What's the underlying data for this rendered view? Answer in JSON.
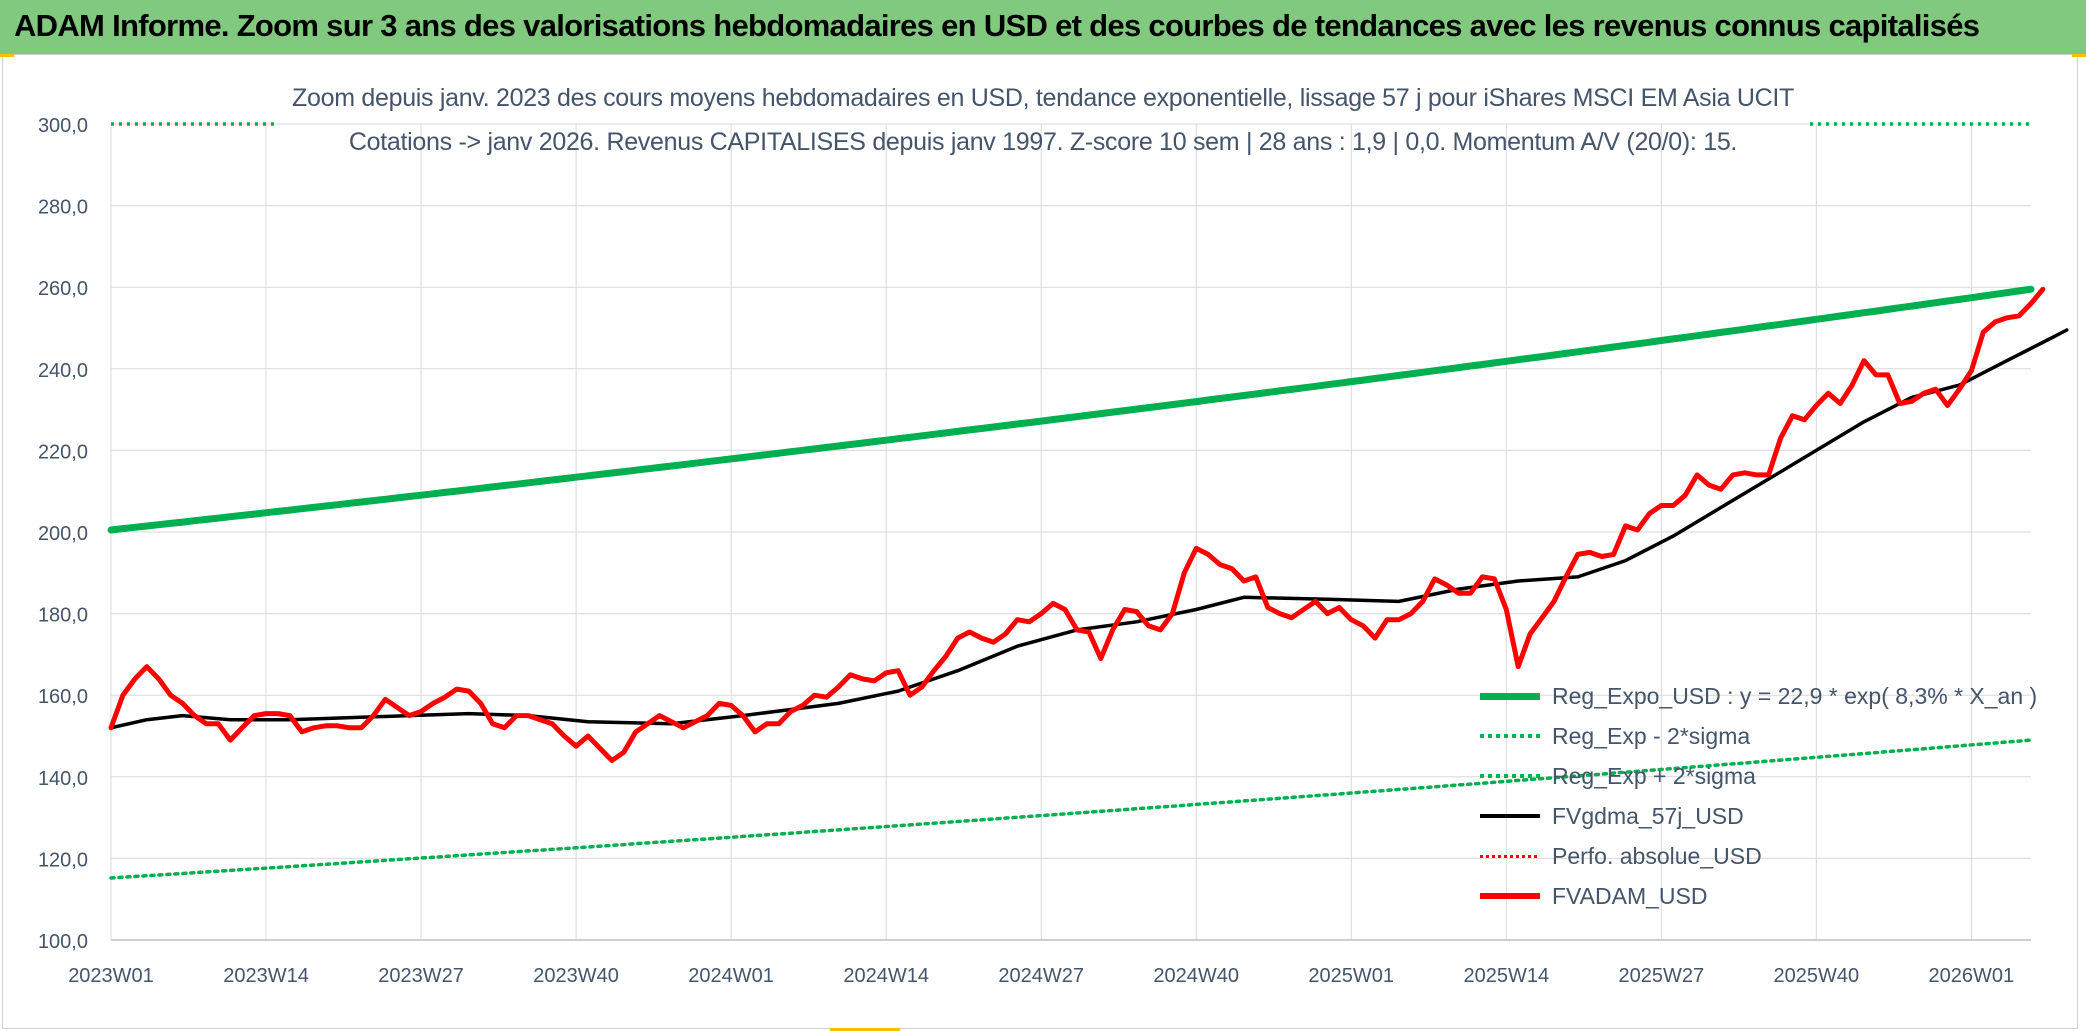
{
  "header": {
    "title": "ADAM Informe. Zoom sur 3 ans des valorisations hebdomadaires en USD et des courbes de tendances avec les revenus connus capitalisés"
  },
  "chart_data": {
    "type": "line",
    "title_line1": "Zoom depuis janv. 2023 des cours moyens hebdomadaires en USD, tendance exponentielle, lissage 57 j pour iShares MSCI EM Asia UCIT",
    "title_line2": "Cotations -> janv 2026. Revenus CAPITALISES depuis janv 1997. Z-score 10 sem | 28 ans : 1,9 | 0,0. Momentum A/V (20/0): 15.",
    "xlabel": "",
    "ylabel": "",
    "ylim": [
      100,
      300
    ],
    "yticks": [
      "100,0",
      "120,0",
      "140,0",
      "160,0",
      "180,0",
      "200,0",
      "220,0",
      "240,0",
      "260,0",
      "280,0",
      "300,0"
    ],
    "ytick_values": [
      100,
      120,
      140,
      160,
      180,
      200,
      220,
      240,
      260,
      280,
      300
    ],
    "x_tick_labels": [
      "2023W01",
      "2023W14",
      "2023W27",
      "2023W40",
      "2024W01",
      "2024W14",
      "2024W27",
      "2024W40",
      "2025W01",
      "2025W14",
      "2025W27",
      "2025W40",
      "2026W01"
    ],
    "x_tick_week_index": [
      0,
      13,
      26,
      39,
      52,
      65,
      78,
      91,
      104,
      117,
      130,
      143,
      156
    ],
    "n_weeks": 162,
    "grid": true,
    "legend_position": "bottom-right",
    "series": [
      {
        "name": "Reg_Expo_USD : y = 22,9 * exp( 8,3% *  X_an )",
        "color": "#00b050",
        "style": "solid-thick",
        "start": 200.5,
        "end": 259.5
      },
      {
        "name": "Reg_Exp - 2*sigma",
        "color": "#00b050",
        "style": "dotted",
        "start": 115.2,
        "end": 149.0
      },
      {
        "name": "Reg_Exp + 2*sigma",
        "color": "#00b050",
        "style": "dotted",
        "start": 300.0,
        "end": 300.0
      },
      {
        "name": "FVgdma_57j_USD",
        "color": "#000000",
        "style": "solid",
        "points": [
          [
            0,
            152
          ],
          [
            3,
            154
          ],
          [
            6,
            155
          ],
          [
            10,
            154
          ],
          [
            15,
            154
          ],
          [
            25,
            155
          ],
          [
            30,
            155.5
          ],
          [
            35,
            155
          ],
          [
            40,
            153.5
          ],
          [
            47,
            153
          ],
          [
            53,
            155
          ],
          [
            57,
            156.5
          ],
          [
            61,
            158
          ],
          [
            66,
            161
          ],
          [
            71,
            166
          ],
          [
            76,
            172
          ],
          [
            81,
            176
          ],
          [
            86,
            178
          ],
          [
            91,
            181
          ],
          [
            95,
            184
          ],
          [
            102,
            183.5
          ],
          [
            108,
            183
          ],
          [
            113,
            186
          ],
          [
            118,
            188
          ],
          [
            123,
            189
          ],
          [
            127,
            193
          ],
          [
            131,
            199
          ],
          [
            135,
            206
          ],
          [
            139,
            213
          ],
          [
            143,
            220
          ],
          [
            147,
            227
          ],
          [
            151,
            233
          ],
          [
            155,
            236
          ],
          [
            159,
            242
          ],
          [
            163,
            248
          ],
          [
            164,
            249.5
          ]
        ]
      },
      {
        "name": "Perfo. absolue_USD",
        "color": "#ff0000",
        "style": "dotted",
        "points": []
      },
      {
        "name": "FVADAM_USD",
        "color": "#ff0000",
        "style": "solid-thick",
        "points": [
          [
            0,
            152
          ],
          [
            1,
            160
          ],
          [
            2,
            164
          ],
          [
            3,
            167
          ],
          [
            4,
            164
          ],
          [
            5,
            160
          ],
          [
            6,
            158
          ],
          [
            7,
            155
          ],
          [
            8,
            153
          ],
          [
            9,
            153
          ],
          [
            10,
            149
          ],
          [
            11,
            152
          ],
          [
            12,
            155
          ],
          [
            13,
            155.5
          ],
          [
            14,
            155.5
          ],
          [
            15,
            155
          ],
          [
            16,
            151
          ],
          [
            17,
            152
          ],
          [
            18,
            152.5
          ],
          [
            19,
            152.5
          ],
          [
            20,
            152
          ],
          [
            21,
            152
          ],
          [
            22,
            155
          ],
          [
            23,
            159
          ],
          [
            24,
            157
          ],
          [
            25,
            155
          ],
          [
            26,
            156
          ],
          [
            27,
            158
          ],
          [
            28,
            159.5
          ],
          [
            29,
            161.5
          ],
          [
            30,
            161
          ],
          [
            31,
            158
          ],
          [
            32,
            153
          ],
          [
            33,
            152
          ],
          [
            34,
            155
          ],
          [
            35,
            155
          ],
          [
            36,
            154
          ],
          [
            37,
            153
          ],
          [
            38,
            150
          ],
          [
            39,
            147.5
          ],
          [
            40,
            150
          ],
          [
            41,
            147
          ],
          [
            42,
            144
          ],
          [
            43,
            146
          ],
          [
            44,
            151
          ],
          [
            45,
            153
          ],
          [
            46,
            155
          ],
          [
            47,
            153.5
          ],
          [
            48,
            152
          ],
          [
            49,
            153.5
          ],
          [
            50,
            155
          ],
          [
            51,
            158
          ],
          [
            52,
            157.5
          ],
          [
            53,
            155
          ],
          [
            54,
            151
          ],
          [
            55,
            153
          ],
          [
            56,
            153
          ],
          [
            57,
            156
          ],
          [
            58,
            157.5
          ],
          [
            59,
            160
          ],
          [
            60,
            159.5
          ],
          [
            61,
            162
          ],
          [
            62,
            165
          ],
          [
            63,
            164
          ],
          [
            64,
            163.5
          ],
          [
            65,
            165.5
          ],
          [
            66,
            166
          ],
          [
            67,
            160
          ],
          [
            68,
            162
          ],
          [
            69,
            166
          ],
          [
            70,
            169.5
          ],
          [
            71,
            174
          ],
          [
            72,
            175.5
          ],
          [
            73,
            174
          ],
          [
            74,
            173
          ],
          [
            75,
            175
          ],
          [
            76,
            178.5
          ],
          [
            77,
            178
          ],
          [
            78,
            180
          ],
          [
            79,
            182.5
          ],
          [
            80,
            181
          ],
          [
            81,
            176
          ],
          [
            82,
            175.5
          ],
          [
            83,
            169
          ],
          [
            84,
            176
          ],
          [
            85,
            181
          ],
          [
            86,
            180.5
          ],
          [
            87,
            177
          ],
          [
            88,
            176
          ],
          [
            89,
            180
          ],
          [
            90,
            190
          ],
          [
            91,
            196
          ],
          [
            92,
            194.5
          ],
          [
            93,
            192
          ],
          [
            94,
            191
          ],
          [
            95,
            188
          ],
          [
            96,
            189
          ],
          [
            97,
            181.5
          ],
          [
            98,
            180
          ],
          [
            99,
            179
          ],
          [
            100,
            181
          ],
          [
            101,
            183
          ],
          [
            102,
            180
          ],
          [
            103,
            181.5
          ],
          [
            104,
            178.5
          ],
          [
            105,
            177
          ],
          [
            106,
            174
          ],
          [
            107,
            178.5
          ],
          [
            108,
            178.5
          ],
          [
            109,
            180
          ],
          [
            110,
            183
          ],
          [
            111,
            188.5
          ],
          [
            112,
            187
          ],
          [
            113,
            185
          ],
          [
            114,
            185
          ],
          [
            115,
            189
          ],
          [
            116,
            188.5
          ],
          [
            117,
            181
          ],
          [
            118,
            167
          ],
          [
            119,
            175
          ],
          [
            120,
            179
          ],
          [
            121,
            183
          ],
          [
            122,
            189
          ],
          [
            123,
            194.5
          ],
          [
            124,
            195
          ],
          [
            125,
            194
          ],
          [
            126,
            194.5
          ],
          [
            127,
            201.5
          ],
          [
            128,
            200.5
          ],
          [
            129,
            204.5
          ],
          [
            130,
            206.5
          ],
          [
            131,
            206.5
          ],
          [
            132,
            209
          ],
          [
            133,
            214
          ],
          [
            134,
            211.5
          ],
          [
            135,
            210.5
          ],
          [
            136,
            214
          ],
          [
            137,
            214.5
          ],
          [
            138,
            214
          ],
          [
            139,
            214
          ],
          [
            140,
            223
          ],
          [
            141,
            228.5
          ],
          [
            142,
            227.5
          ],
          [
            143,
            231
          ],
          [
            144,
            234
          ],
          [
            145,
            231.5
          ],
          [
            146,
            236
          ],
          [
            147,
            242
          ],
          [
            148,
            238.5
          ],
          [
            149,
            238.5
          ],
          [
            150,
            231.5
          ],
          [
            151,
            232
          ],
          [
            152,
            234
          ],
          [
            153,
            235
          ],
          [
            154,
            231
          ],
          [
            155,
            235
          ],
          [
            156,
            239.5
          ],
          [
            157,
            249
          ],
          [
            158,
            251.5
          ],
          [
            159,
            252.5
          ],
          [
            160,
            253
          ],
          [
            161,
            256
          ],
          [
            162,
            259.5
          ]
        ]
      }
    ]
  }
}
